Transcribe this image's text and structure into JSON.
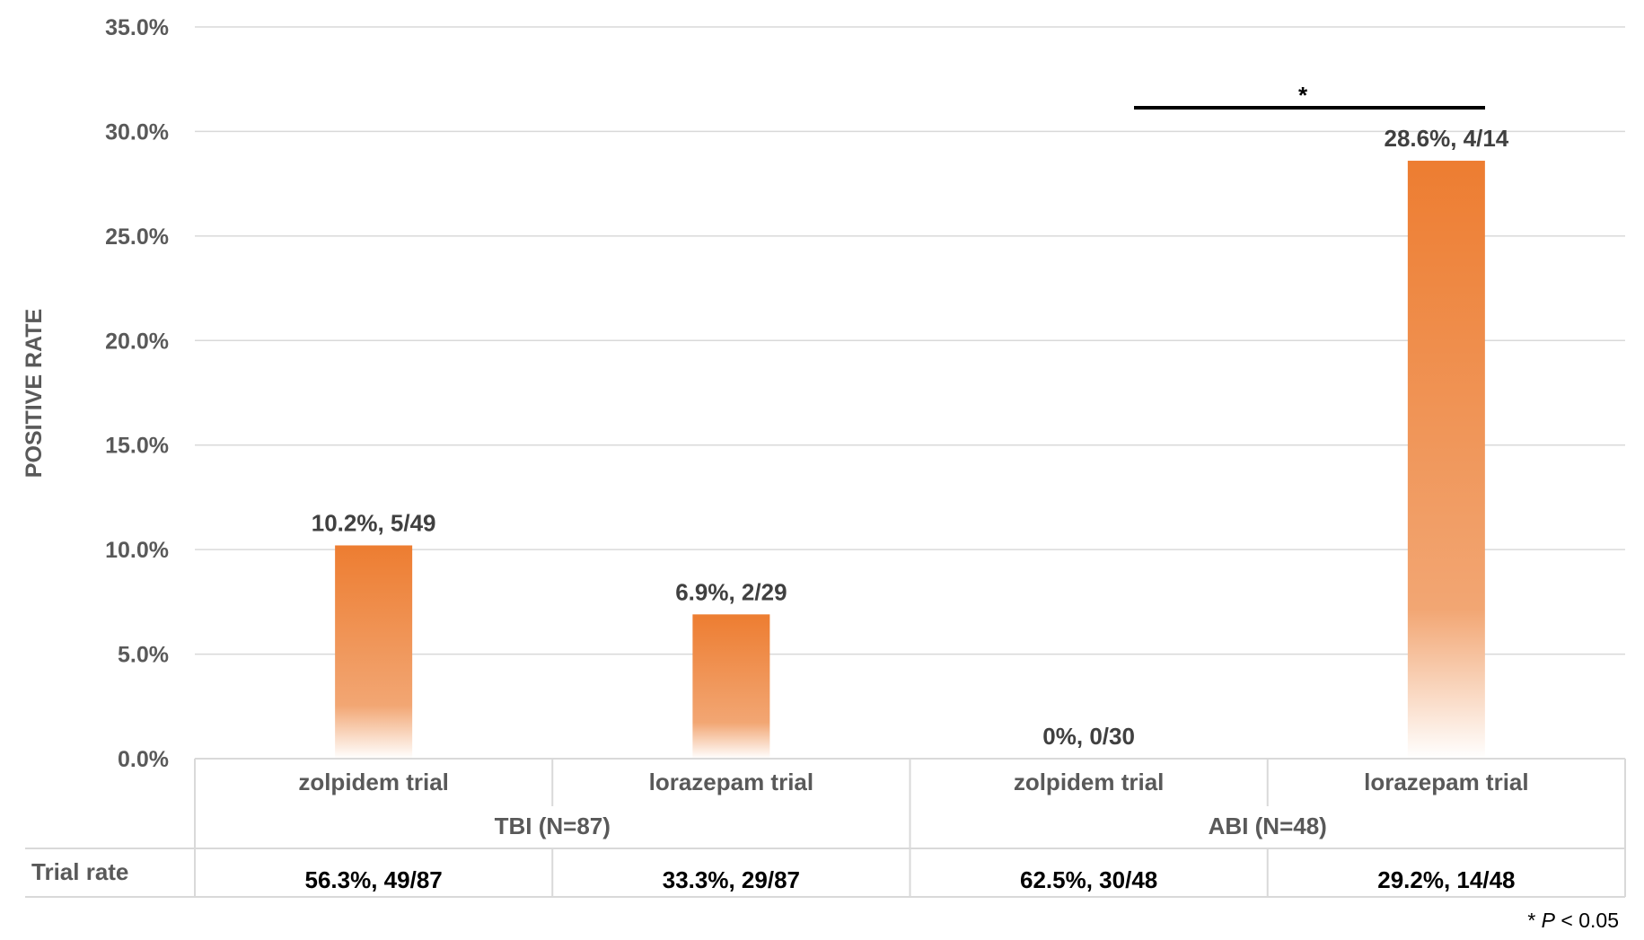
{
  "chart_data": {
    "type": "bar",
    "ylabel": "POSITIVE RATE",
    "ylim": [
      0,
      0.35
    ],
    "yticks": [
      "0.0%",
      "5.0%",
      "10.0%",
      "15.0%",
      "20.0%",
      "25.0%",
      "30.0%",
      "35.0%"
    ],
    "grid": true,
    "bar_color": "#ED7D31",
    "groups": [
      {
        "label": "TBI (N=87)",
        "categories": [
          0,
          1
        ]
      },
      {
        "label": "ABI (N=48)",
        "categories": [
          2,
          3
        ]
      }
    ],
    "categories": [
      "zolpidem trial",
      "lorazepam trial",
      "zolpidem trial",
      "lorazepam trial"
    ],
    "values": [
      0.102,
      0.069,
      0.0,
      0.286
    ],
    "data_labels": [
      "10.2%,  5/49",
      "6.9%,  2/29",
      "0%,  0/30",
      "28.6%,  4/14"
    ],
    "significance": {
      "between": [
        2,
        3
      ],
      "marker": "*"
    },
    "table": {
      "row_label": "Trial rate",
      "values": [
        "56.3%, 49/87",
        "33.3%, 29/87",
        "62.5%, 30/48",
        "29.2%, 14/48"
      ]
    },
    "footnote": {
      "marker": "*",
      "p": "P",
      "rest": " < 0.05"
    }
  }
}
